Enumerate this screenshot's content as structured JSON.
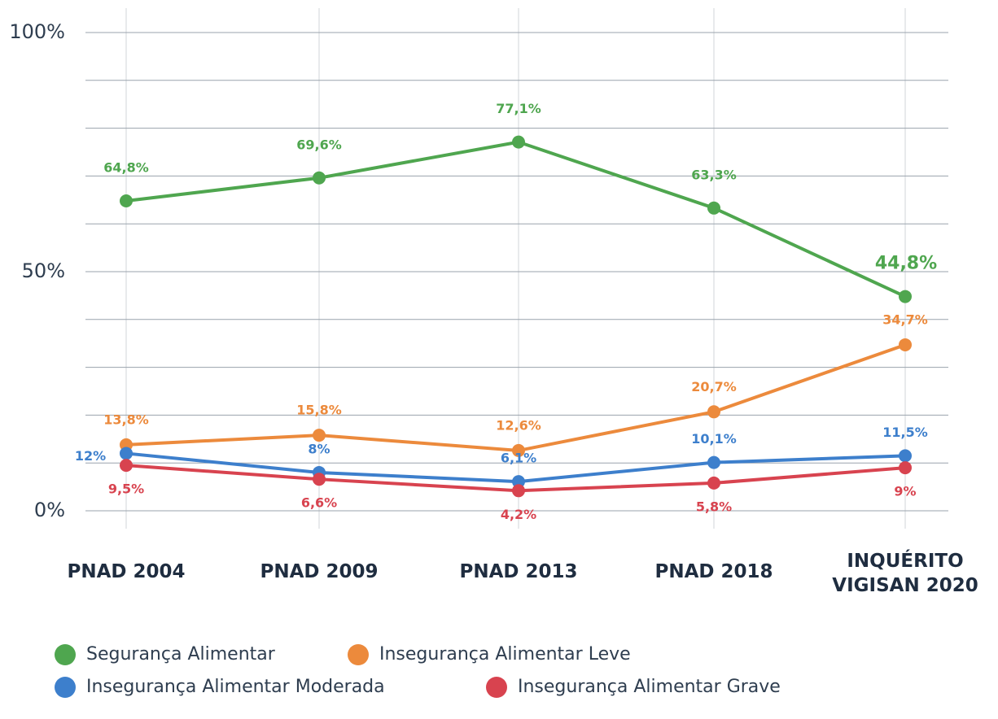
{
  "chart_data": {
    "type": "line",
    "categories": [
      "PNAD 2004",
      "PNAD 2009",
      "PNAD 2013",
      "PNAD 2018",
      "INQUÉRITO VIGISAN 2020"
    ],
    "series": [
      {
        "name": "Segurança Alimentar",
        "color": "#4fa64f",
        "values": [
          64.8,
          69.6,
          77.1,
          63.3,
          44.8
        ],
        "value_labels": [
          "64,8%",
          "69,6%",
          "77,1%",
          "63,3%",
          "44,8%"
        ]
      },
      {
        "name": "Insegurança Alimentar Leve",
        "color": "#ec8a3c",
        "values": [
          13.8,
          15.8,
          12.6,
          20.7,
          34.7
        ],
        "value_labels": [
          "13,8%",
          "15,8%",
          "12,6%",
          "20,7%",
          "34,7%"
        ]
      },
      {
        "name": "Insegurança Alimentar Moderada",
        "color": "#3d7fcc",
        "values": [
          12,
          8,
          6.1,
          10.1,
          11.5
        ],
        "value_labels": [
          "12%",
          "8%",
          "6,1%",
          "10,1%",
          "11,5%"
        ]
      },
      {
        "name": "Insegurança Alimentar Grave",
        "color": "#d8434f",
        "values": [
          9.5,
          6.6,
          4.2,
          5.8,
          9
        ],
        "value_labels": [
          "9,5%",
          "6,6%",
          "4,2%",
          "5,8%",
          "9%"
        ]
      }
    ],
    "ylim": [
      0,
      100
    ],
    "yticks": [
      {
        "value": 0,
        "label": "0%"
      },
      {
        "value": 50,
        "label": "50%"
      },
      {
        "value": 100,
        "label": "100%"
      }
    ],
    "ygrid": [
      0,
      10,
      20,
      30,
      40,
      50,
      60,
      70,
      80,
      90,
      100
    ],
    "grid": true
  }
}
